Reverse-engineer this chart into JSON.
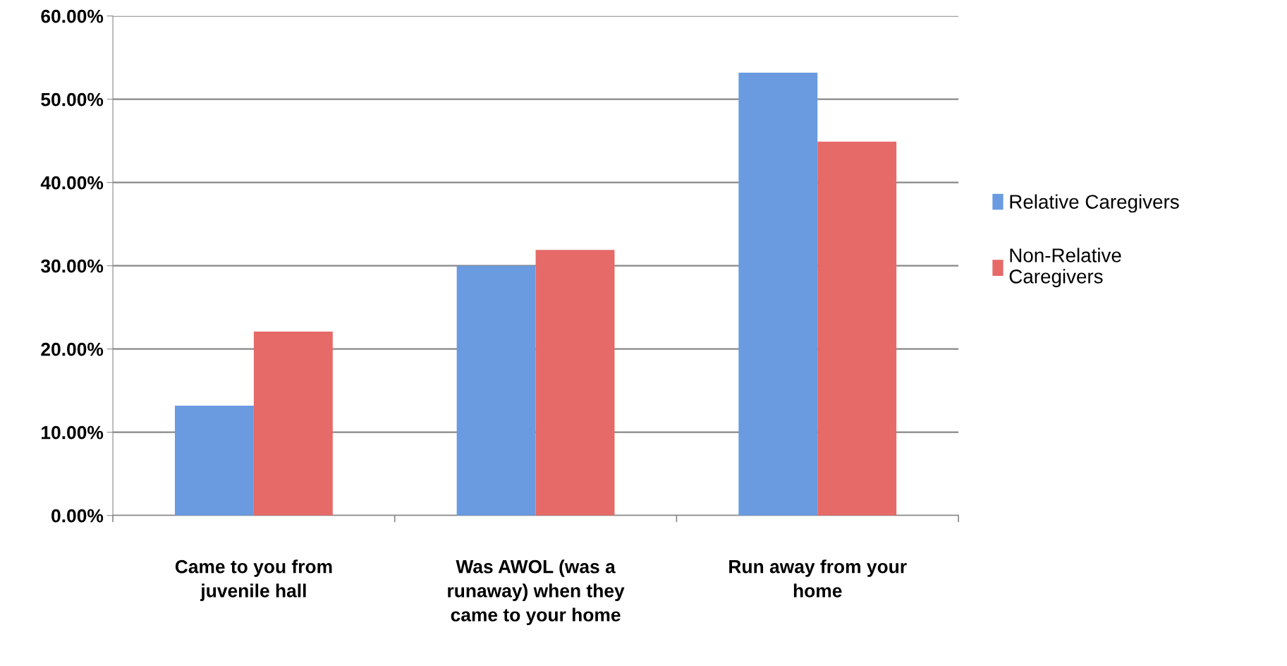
{
  "chart_data": {
    "type": "bar",
    "categories": [
      "Came to you from\njuvenile hall",
      "Was AWOL (was a\nrunaway) when they\ncame to your home",
      "Run away from your\nhome"
    ],
    "series": [
      {
        "name": "Relative Caregivers",
        "color": "#6a9be0",
        "values": [
          13.2,
          30.0,
          53.2
        ]
      },
      {
        "name": "Non-Relative\nCaregivers",
        "color": "#e56a68",
        "values": [
          22.1,
          31.9,
          44.9
        ]
      }
    ],
    "ylim": [
      0,
      60
    ],
    "yticks": [
      {
        "value": 0,
        "label": "0.00%"
      },
      {
        "value": 10,
        "label": "10.00%"
      },
      {
        "value": 20,
        "label": "20.00%"
      },
      {
        "value": 30,
        "label": "30.00%"
      },
      {
        "value": 40,
        "label": "40.00%"
      },
      {
        "value": 50,
        "label": "50.00%"
      },
      {
        "value": 60,
        "label": "60.00%"
      }
    ],
    "grid": "y",
    "legend": "right"
  }
}
